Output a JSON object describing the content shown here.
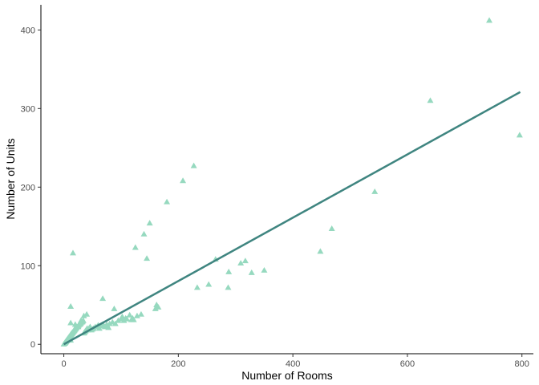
{
  "chart_data": {
    "type": "scatter",
    "xlabel": "Number of Rooms",
    "ylabel": "Number of Units",
    "xlim": [
      -40,
      820
    ],
    "ylim": [
      -12,
      432
    ],
    "x_ticks": [
      0,
      200,
      400,
      600,
      800
    ],
    "y_ticks": [
      0,
      100,
      200,
      300,
      400
    ],
    "x_tick_labels": [
      "0",
      "200",
      "400",
      "600",
      "800"
    ],
    "y_tick_labels": [
      "0",
      "100",
      "200",
      "300",
      "400"
    ],
    "grid": false,
    "legend": "none",
    "marker": "triangle",
    "point_color": "#96D9BF",
    "line_color": "#3F8580",
    "trend_line": {
      "x": [
        0,
        797
      ],
      "y": [
        0,
        321
      ]
    },
    "points": {
      "x": [
        0,
        1,
        2,
        2,
        3,
        3,
        4,
        4,
        5,
        5,
        6,
        6,
        7,
        7,
        8,
        8,
        9,
        9,
        10,
        10,
        11,
        11,
        12,
        12,
        12,
        13,
        13,
        14,
        14,
        15,
        15,
        16,
        17,
        18,
        18,
        19,
        20,
        20,
        21,
        22,
        23,
        24,
        25,
        26,
        27,
        28,
        29,
        30,
        31,
        32,
        33,
        34,
        35,
        36,
        37,
        38,
        39,
        40,
        41,
        42,
        43,
        44,
        45,
        46,
        48,
        50,
        52,
        55,
        58,
        60,
        62,
        65,
        68,
        70,
        72,
        75,
        78,
        80,
        85,
        88,
        90,
        95,
        100,
        102,
        105,
        108,
        110,
        115,
        118,
        120,
        122,
        125,
        128,
        135,
        140,
        145,
        150,
        160,
        162,
        165,
        180,
        208,
        227,
        233,
        253,
        265,
        287,
        288,
        309,
        317,
        328,
        350,
        448,
        468,
        543,
        640,
        743,
        796,
        12,
        16,
        12,
        20,
        25,
        30,
        35,
        40,
        68
      ],
      "y": [
        0,
        1,
        1,
        2,
        2,
        3,
        3,
        4,
        4,
        5,
        5,
        6,
        6,
        7,
        7,
        8,
        8,
        9,
        9,
        10,
        10,
        11,
        11,
        12,
        5,
        12,
        13,
        13,
        14,
        14,
        15,
        15,
        16,
        17,
        18,
        18,
        19,
        20,
        20,
        21,
        22,
        22,
        23,
        24,
        25,
        25,
        26,
        27,
        28,
        28,
        29,
        30,
        14,
        15,
        16,
        17,
        18,
        19,
        20,
        18,
        19,
        20,
        21,
        22,
        18,
        19,
        20,
        22,
        22,
        24,
        20,
        23,
        25,
        23,
        22,
        25,
        21,
        26,
        28,
        45,
        26,
        30,
        32,
        35,
        30,
        33,
        32,
        37,
        31,
        33,
        31,
        123,
        36,
        38,
        140,
        109,
        154,
        45,
        50,
        47,
        181,
        208,
        227,
        72,
        76,
        108,
        72,
        92,
        103,
        106,
        91,
        94,
        118,
        147,
        194,
        310,
        412,
        266,
        27,
        116,
        48,
        25,
        22,
        30,
        36,
        38,
        58
      ]
    }
  }
}
